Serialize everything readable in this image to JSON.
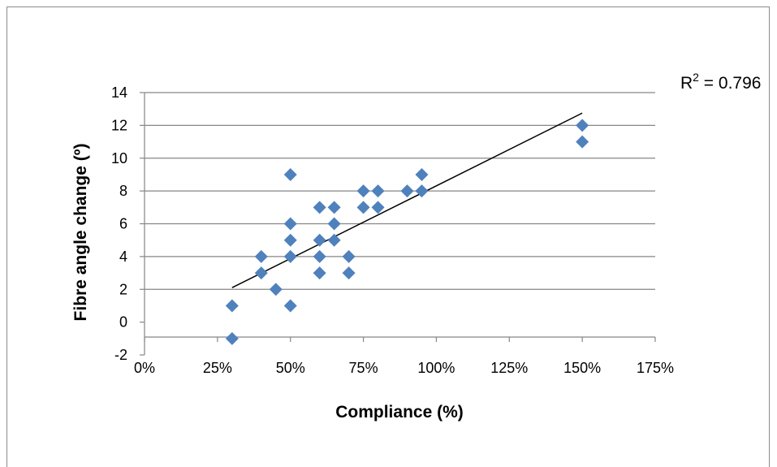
{
  "chart_data": {
    "type": "scatter",
    "title": "",
    "xlabel": "Compliance (%)",
    "ylabel": "Fibre angle change (º)",
    "xlim": [
      0,
      175
    ],
    "ylim": [
      -2,
      14
    ],
    "x_ticks": [
      "0%",
      "25%",
      "50%",
      "75%",
      "100%",
      "125%",
      "150%",
      "175%"
    ],
    "y_ticks": [
      "-2",
      "0",
      "2",
      "4",
      "6",
      "8",
      "10",
      "12",
      "14"
    ],
    "grid": true,
    "legend": "none",
    "marker_color": "#4f81bd",
    "series": [
      {
        "points": [
          [
            30,
            1
          ],
          [
            30,
            -1
          ],
          [
            40,
            4
          ],
          [
            40,
            3
          ],
          [
            45,
            2
          ],
          [
            50,
            9
          ],
          [
            50,
            6
          ],
          [
            50,
            5
          ],
          [
            50,
            4
          ],
          [
            50,
            1
          ],
          [
            60,
            7
          ],
          [
            60,
            5
          ],
          [
            60,
            4
          ],
          [
            60,
            3
          ],
          [
            65,
            7
          ],
          [
            65,
            6
          ],
          [
            65,
            5
          ],
          [
            70,
            4
          ],
          [
            70,
            3
          ],
          [
            75,
            8
          ],
          [
            75,
            7
          ],
          [
            80,
            8
          ],
          [
            80,
            7
          ],
          [
            90,
            8
          ],
          [
            95,
            9
          ],
          [
            95,
            8
          ],
          [
            150,
            12
          ],
          [
            150,
            11
          ]
        ]
      }
    ],
    "trendline": {
      "x": [
        30,
        150
      ],
      "y": [
        2.1,
        12.75
      ]
    },
    "annotation": {
      "text_prefix": "R",
      "superscript": "2",
      "text_suffix": " = 0.796"
    }
  }
}
